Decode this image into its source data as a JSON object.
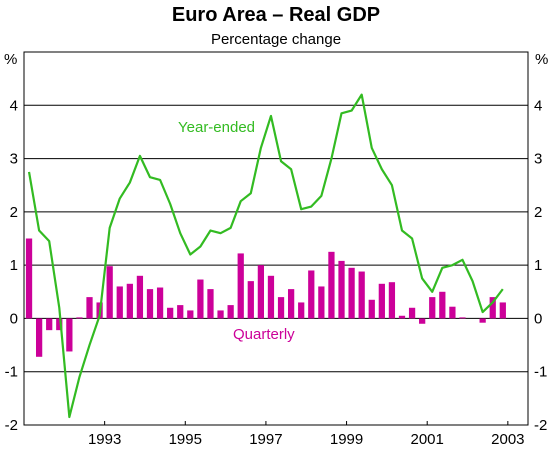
{
  "chart_data": {
    "type": "bar+line",
    "title": "Euro Area – Real GDP",
    "subtitle": "Percentage change",
    "unit_left": "%",
    "unit_right": "%",
    "ylim": [
      -2,
      5
    ],
    "yticks": [
      -2,
      -1,
      0,
      1,
      2,
      3,
      4
    ],
    "xlim": [
      1991.5,
      2004.0
    ],
    "xtick_labels": [
      "1993",
      "1995",
      "1997",
      "1999",
      "2001",
      "2003"
    ],
    "xtick_values": [
      1993,
      1995,
      1997,
      1999,
      2001,
      2003
    ],
    "grid": true,
    "colors": {
      "quarterly": "#cc0099",
      "year_ended": "#33bb22",
      "grid": "#000000"
    },
    "series": [
      {
        "name": "Quarterly",
        "type": "bar",
        "x": [
          1991.625,
          1991.875,
          1992.125,
          1992.375,
          1992.625,
          1992.875,
          1993.125,
          1993.375,
          1993.625,
          1993.875,
          1994.125,
          1994.375,
          1994.625,
          1994.875,
          1995.125,
          1995.375,
          1995.625,
          1995.875,
          1996.125,
          1996.375,
          1996.625,
          1996.875,
          1997.125,
          1997.375,
          1997.625,
          1997.875,
          1998.125,
          1998.375,
          1998.625,
          1998.875,
          1999.125,
          1999.375,
          1999.625,
          1999.875,
          2000.125,
          2000.375,
          2000.625,
          2000.875,
          2001.125,
          2001.375,
          2001.625,
          2001.875,
          2002.125,
          2002.375,
          2002.625,
          2002.875,
          2003.125,
          2003.375,
          2003.625,
          2003.875
        ],
        "values": [
          1.5,
          -0.72,
          -0.22,
          -0.22,
          -0.62,
          0.02,
          0.4,
          0.3,
          0.98,
          0.6,
          0.65,
          0.8,
          0.55,
          0.58,
          0.2,
          0.25,
          0.15,
          0.73,
          0.55,
          0.15,
          0.25,
          1.22,
          0.7,
          1.0,
          0.8,
          0.4,
          0.55,
          0.3,
          0.9,
          0.6,
          1.25,
          1.08,
          0.95,
          0.88,
          0.35,
          0.65,
          0.68,
          0.05,
          0.2,
          -0.1,
          0.4,
          0.5,
          0.22,
          0.02,
          0.0,
          -0.08,
          0.4,
          0.3,
          0.0,
          0.0
        ]
      },
      {
        "name": "Year-ended",
        "type": "line",
        "x": [
          1991.625,
          1991.875,
          1992.125,
          1992.375,
          1992.625,
          1992.875,
          1993.125,
          1993.375,
          1993.625,
          1993.875,
          1994.125,
          1994.375,
          1994.625,
          1994.875,
          1995.125,
          1995.375,
          1995.625,
          1995.875,
          1996.125,
          1996.375,
          1996.625,
          1996.875,
          1997.125,
          1997.375,
          1997.625,
          1997.875,
          1998.125,
          1998.375,
          1998.625,
          1998.875,
          1999.125,
          1999.375,
          1999.625,
          1999.875,
          2000.125,
          2000.375,
          2000.625,
          2000.875,
          2001.125,
          2001.375,
          2001.625,
          2001.875,
          2002.125,
          2002.375,
          2002.625,
          2002.875,
          2003.125,
          2003.375
        ],
        "values": [
          2.75,
          1.65,
          1.45,
          0.2,
          -1.85,
          -1.1,
          -0.5,
          0.05,
          1.7,
          2.25,
          2.55,
          3.05,
          2.65,
          2.6,
          2.15,
          1.6,
          1.2,
          1.35,
          1.65,
          1.6,
          1.7,
          2.2,
          2.35,
          3.2,
          3.8,
          2.95,
          2.8,
          2.05,
          2.1,
          2.3,
          3.0,
          3.85,
          3.9,
          4.2,
          3.2,
          2.8,
          2.5,
          1.65,
          1.5,
          0.75,
          0.5,
          0.95,
          1.0,
          1.1,
          0.7,
          0.12,
          0.3,
          0.55
        ]
      }
    ]
  }
}
